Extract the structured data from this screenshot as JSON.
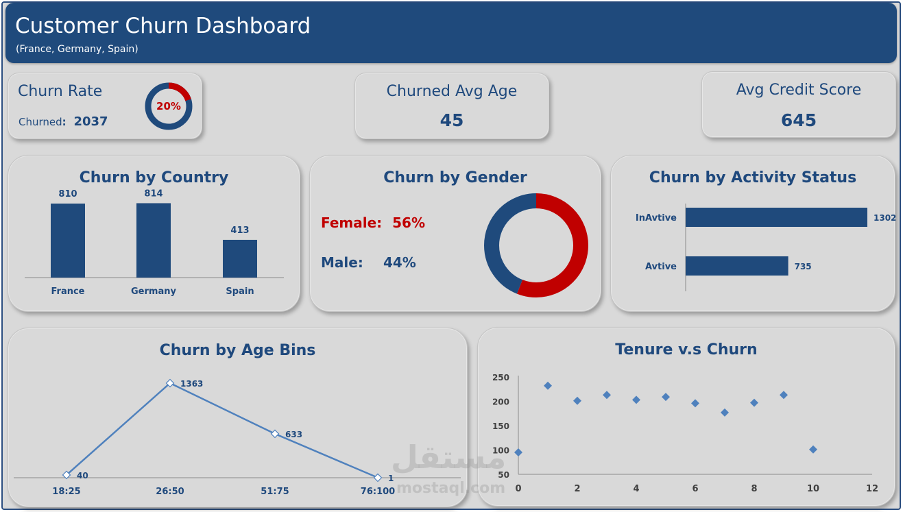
{
  "header": {
    "title": "Customer Churn Dashboard",
    "subtitle": "(France, Germany, Spain)"
  },
  "kpis": {
    "churn_rate": {
      "title": "Churn Rate",
      "churned_label": "Churned",
      "churned_value": "2037",
      "rate_label": "20%",
      "rate_fraction": 0.2
    },
    "avg_age": {
      "title": "Churned Avg Age",
      "value": "45"
    },
    "credit": {
      "title": "Avg Credit Score",
      "value": "645"
    }
  },
  "colors": {
    "navy": "#1f4a7c",
    "red": "#c00000",
    "steel": "#4f81bd"
  },
  "watermark": {
    "arabic": "مستقل",
    "latin": "mostaql.com"
  },
  "chart_data": [
    {
      "type": "bar",
      "title": "Churn by Country",
      "categories": [
        "France",
        "Germany",
        "Spain"
      ],
      "values": [
        810,
        814,
        413
      ],
      "ylim": [
        0,
        900
      ]
    },
    {
      "type": "pie",
      "title": "Churn by Gender",
      "categories": [
        "Female",
        "Male"
      ],
      "values": [
        56,
        44
      ],
      "labels": [
        "Female:",
        "Male:"
      ],
      "value_labels": [
        "56%",
        "44%"
      ]
    },
    {
      "type": "bar",
      "orientation": "horizontal",
      "title": "Churn by Activity Status",
      "categories": [
        "InAvtive",
        "Avtive"
      ],
      "values": [
        1302,
        735
      ],
      "xlim": [
        0,
        1302
      ]
    },
    {
      "type": "line",
      "title": "Churn by Age Bins",
      "categories": [
        "18:25",
        "26:50",
        "51:75",
        "76:100"
      ],
      "values": [
        40,
        1363,
        633,
        1
      ],
      "ylim": [
        0,
        1400
      ]
    },
    {
      "type": "scatter",
      "title": "Tenure v.s Churn",
      "x": [
        0,
        1,
        2,
        3,
        4,
        5,
        6,
        7,
        8,
        9,
        10
      ],
      "y": [
        95,
        232,
        201,
        213,
        203,
        209,
        196,
        177,
        197,
        213,
        101
      ],
      "xlim": [
        0,
        12
      ],
      "ylim": [
        50,
        250
      ],
      "xticks": [
        "0",
        "2",
        "4",
        "6",
        "8",
        "10",
        "12"
      ],
      "yticks": [
        "50",
        "100",
        "150",
        "200",
        "250"
      ]
    }
  ]
}
